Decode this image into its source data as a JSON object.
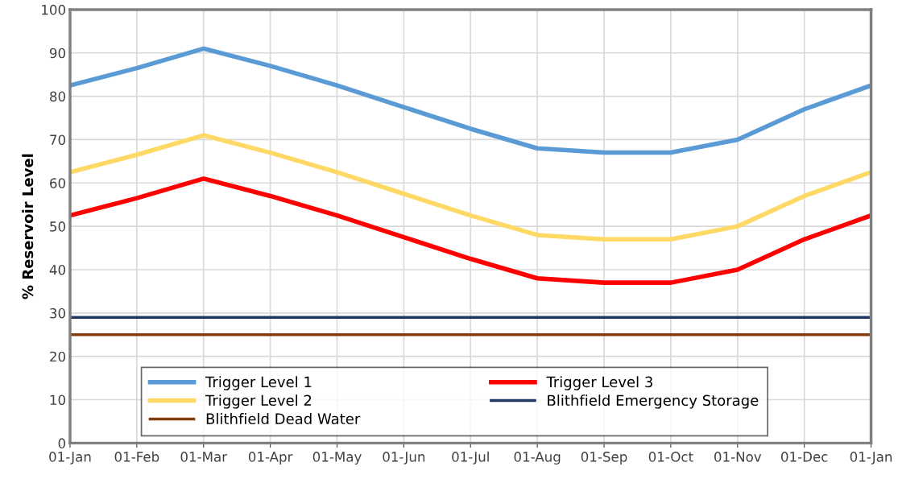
{
  "chart_data": {
    "type": "line",
    "ylabel": "% Reservoir Level",
    "categories": [
      "01-Jan",
      "01-Feb",
      "01-Mar",
      "01-Apr",
      "01-May",
      "01-Jun",
      "01-Jul",
      "01-Aug",
      "01-Sep",
      "01-Oct",
      "01-Nov",
      "01-Dec",
      "01-Jan"
    ],
    "series": [
      {
        "name": "Trigger Level 1",
        "color": "#5b9bd5",
        "values": [
          82.5,
          86.5,
          91,
          87,
          82.5,
          77.5,
          72.5,
          68,
          67,
          67,
          70,
          77,
          82.5
        ]
      },
      {
        "name": "Trigger Level 2",
        "color": "#ffd966",
        "values": [
          62.5,
          66.5,
          71,
          67,
          62.5,
          57.5,
          52.5,
          48,
          47,
          47,
          50,
          57,
          62.5
        ]
      },
      {
        "name": "Blithfield Dead Water",
        "color": "#843c0c",
        "values": [
          25,
          25,
          25,
          25,
          25,
          25,
          25,
          25,
          25,
          25,
          25,
          25,
          25
        ]
      },
      {
        "name": "Trigger Level 3",
        "color": "#ff0000",
        "values": [
          52.5,
          56.5,
          61,
          57,
          52.5,
          47.5,
          42.5,
          38,
          37,
          37,
          40,
          47,
          52.5
        ]
      },
      {
        "name": "Blithfield Emergency Storage",
        "color": "#1f3864",
        "values": [
          29,
          29,
          29,
          29,
          29,
          29,
          29,
          29,
          29,
          29,
          29,
          29,
          29
        ]
      }
    ],
    "ylim": [
      0,
      100
    ],
    "yticks": [
      0,
      10,
      20,
      30,
      40,
      50,
      60,
      70,
      80,
      90,
      100
    ],
    "grid": true,
    "legend": "bottom",
    "marker": "none",
    "line_style": "solid"
  }
}
